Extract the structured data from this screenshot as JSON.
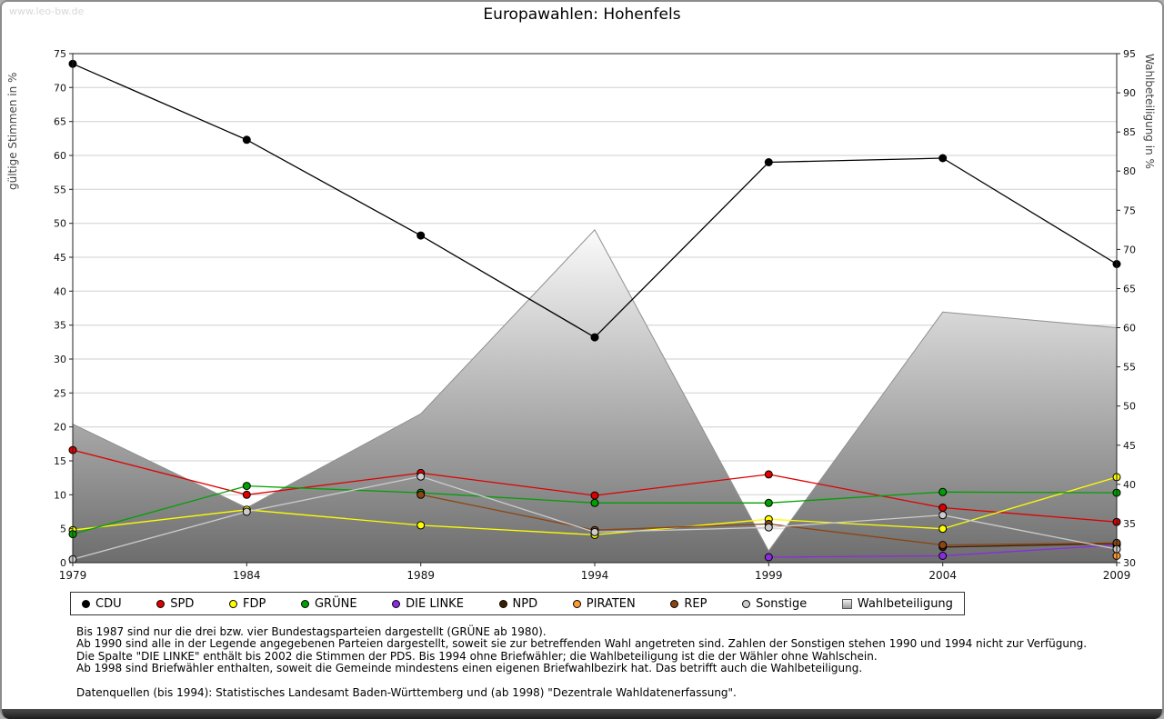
{
  "watermark": "www.leo-bw.de",
  "footnotes": [
    "Bis 1987 sind nur die drei bzw. vier Bundestagsparteien dargestellt (GRÜNE ab 1980).",
    "Ab 1990 sind alle in der Legende angegebenen Parteien dargestellt, soweit sie zur betreffenden Wahl angetreten sind. Zahlen der Sonstigen stehen 1990 und 1994 nicht zur Verfügung.",
    "Die Spalte \"DIE LINKE\" enthält bis 2002 die Stimmen der PDS. Bis 1994 ohne Briefwähler; die Wahlbeteiligung ist die der Wähler ohne Wahlschein.",
    "Ab 1998 sind Briefwähler enthalten, soweit die Gemeinde mindestens einen eigenen Briefwahlbezirk hat. Das betrifft auch die Wahlbeteiligung.",
    "",
    "Datenquellen (bis 1994): Statistisches Landesamt Baden-Württemberg und (ab 1998) \"Dezentrale Wahldatenerfassung\"."
  ],
  "chart_data": {
    "type": "line",
    "title": "Europawahlen: Hohenfels",
    "x": [
      1979,
      1984,
      1989,
      1994,
      1999,
      2004,
      2009
    ],
    "left_axis": {
      "label": "gültige Stimmen in %",
      "min": 0,
      "max": 75,
      "step": 5
    },
    "right_axis": {
      "label": "Wahlbeteiligung in %",
      "min": 30,
      "max": 95,
      "step": 5
    },
    "grid": "horizontal",
    "legend_position": "bottom",
    "area_series": {
      "name": "Wahlbeteiligung",
      "axis": "right",
      "color_top": "#fbfbfb",
      "color_bottom": "#6d6d6d",
      "values": [
        47.7,
        37.0,
        49.0,
        72.5,
        31.5,
        62.0,
        60.0
      ]
    },
    "series": [
      {
        "name": "CDU",
        "color": "#000000",
        "values": [
          73.5,
          62.3,
          48.2,
          33.2,
          59.0,
          59.6,
          44.0
        ]
      },
      {
        "name": "SPD",
        "color": "#dd0000",
        "values": [
          16.6,
          10.0,
          13.2,
          9.9,
          13.0,
          8.1,
          6.0
        ]
      },
      {
        "name": "FDP",
        "color": "#ffff00",
        "values": [
          4.8,
          7.8,
          5.5,
          4.1,
          6.4,
          5.0,
          12.6
        ]
      },
      {
        "name": "GRÜNE",
        "color": "#00a000",
        "values": [
          4.2,
          11.3,
          10.3,
          8.8,
          8.8,
          10.4,
          10.3
        ]
      },
      {
        "name": "DIE LINKE",
        "color": "#8a2be2",
        "values": [
          null,
          null,
          null,
          null,
          0.8,
          1.0,
          2.6
        ]
      },
      {
        "name": "NPD",
        "color": "#3d1f00",
        "values": [
          null,
          null,
          null,
          null,
          null,
          2.3,
          2.8
        ]
      },
      {
        "name": "PIRATEN",
        "color": "#ff9933",
        "values": [
          null,
          null,
          null,
          null,
          null,
          null,
          1.0
        ]
      },
      {
        "name": "REP",
        "color": "#8b4513",
        "values": [
          null,
          null,
          10.0,
          4.8,
          5.7,
          2.6,
          2.9
        ]
      },
      {
        "name": "Sonstige",
        "color": "#cccccc",
        "values": [
          0.5,
          7.5,
          12.7,
          4.5,
          5.2,
          7.0,
          2.0
        ]
      }
    ]
  }
}
